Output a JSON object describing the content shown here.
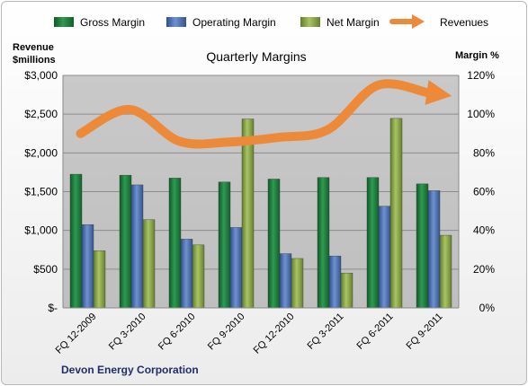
{
  "chart_data": {
    "type": "bar",
    "title": "Quarterly Margins",
    "company": "Devon Energy Corporation",
    "categories": [
      "FQ 12-2009",
      "FQ 3-2010",
      "FQ 6-2010",
      "FQ 9-2010",
      "FQ 12-2010",
      "FQ 3-2011",
      "FQ 6-2011",
      "FQ 9-2011"
    ],
    "ylabel_left": [
      "Revenue",
      "$millions"
    ],
    "ylabel_right": "Margin %",
    "ylim_left": [
      0,
      3000
    ],
    "ylim_right": [
      0,
      120
    ],
    "left_ticks": [
      0,
      500,
      1000,
      1500,
      2000,
      2500,
      3000
    ],
    "left_tick_labels": [
      "$-",
      "$500",
      "$1,000",
      "$1,500",
      "$2,000",
      "$2,500",
      "$3,000"
    ],
    "right_ticks": [
      0,
      20,
      40,
      60,
      80,
      100,
      120
    ],
    "right_tick_labels": [
      "0%",
      "20%",
      "40%",
      "60%",
      "80%",
      "100%",
      "120%"
    ],
    "grid": true,
    "legend_position": "top",
    "series": [
      {
        "name": "Gross Margin",
        "kind": "bar",
        "axis": "right",
        "color": "#1e7a3c",
        "values": [
          69,
          68.5,
          67,
          65,
          66.5,
          67.3,
          67.3,
          64
        ]
      },
      {
        "name": "Operating Margin",
        "kind": "bar",
        "axis": "right",
        "color": "#4a6fb0",
        "values": [
          43,
          63.5,
          35.5,
          41.5,
          28,
          26.8,
          52.5,
          60.5
        ]
      },
      {
        "name": "Net Margin",
        "kind": "bar",
        "axis": "right",
        "color": "#8aa84a",
        "values": [
          29.5,
          45.5,
          32.5,
          97.5,
          25.5,
          18,
          97.8,
          37.5
        ]
      },
      {
        "name": "Revenues",
        "kind": "line",
        "axis": "left",
        "color": "#ec8a3a",
        "values": [
          2250,
          2560,
          2150,
          2140,
          2200,
          2300,
          2870,
          2780
        ]
      }
    ]
  }
}
